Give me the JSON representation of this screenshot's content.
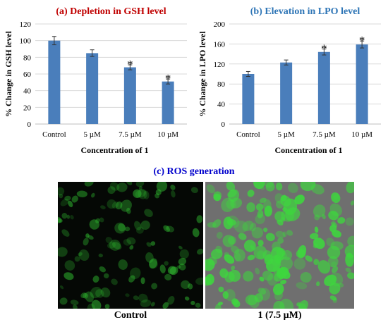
{
  "chart_data": [
    {
      "type": "bar",
      "title": "(a) Depletion in GSH level",
      "title_color": "#c00000",
      "categories": [
        "Control",
        "5 µM",
        "7.5 µM",
        "10 µM"
      ],
      "values": [
        100,
        85,
        68,
        51
      ],
      "errors": [
        5,
        4,
        3,
        3
      ],
      "significance": [
        "",
        "",
        "*",
        "*"
      ],
      "xlabel": "Concentration  of 1",
      "ylabel": "% Change in GSH level",
      "ylim": [
        0,
        120
      ],
      "yticks": [
        0,
        20,
        40,
        60,
        80,
        100,
        120
      ],
      "bar_color": "#4a7ebb",
      "grid": true
    },
    {
      "type": "bar",
      "title": "(b) Elevation in LPO level",
      "title_color": "#2e75b6",
      "categories": [
        "Control",
        "5 µM",
        "7.5 µM",
        "10 µM"
      ],
      "values": [
        100,
        123,
        144,
        159
      ],
      "errors": [
        5,
        5,
        6,
        7
      ],
      "significance": [
        "",
        "",
        "*",
        "*"
      ],
      "xlabel": "Concentration  of 1",
      "ylabel": "% Change in LPO level",
      "ylim": [
        0,
        200
      ],
      "yticks": [
        0,
        40,
        80,
        120,
        160,
        200
      ],
      "bar_color": "#4a7ebb",
      "grid": true
    }
  ],
  "panel_c": {
    "title": "(c) ROS generation",
    "title_color": "#0000cc",
    "images": [
      {
        "label": "Control",
        "background": "#050805",
        "cell_color": "#2fb82f",
        "cell_opacity": 0.55
      },
      {
        "label": "1 (7.5 µM)",
        "background": "#6f6f6f",
        "cell_color": "#3ed63e",
        "cell_opacity": 0.9
      }
    ]
  }
}
